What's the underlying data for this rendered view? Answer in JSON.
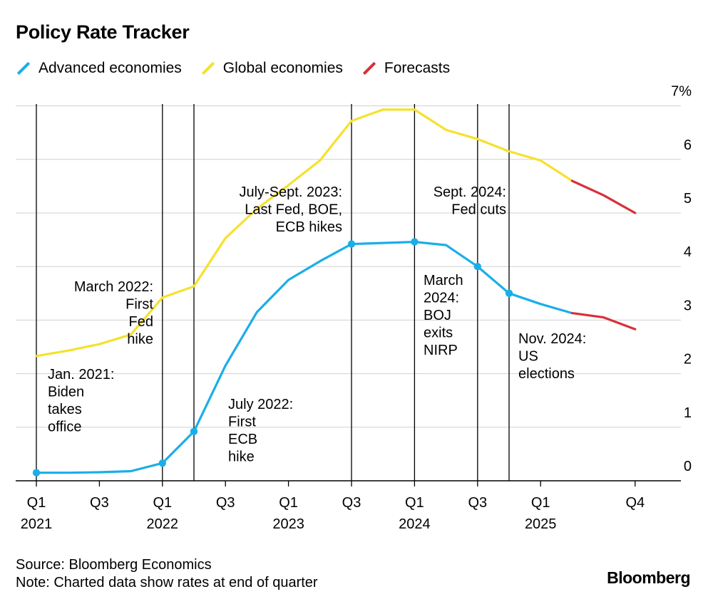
{
  "chart_data": {
    "type": "line",
    "title": "Policy Rate Tracker",
    "legend": [
      {
        "name": "Advanced economies",
        "color": "#1aaee8"
      },
      {
        "name": "Global economies",
        "color": "#f5e12e"
      },
      {
        "name": "Forecasts",
        "color": "#d92f3a"
      }
    ],
    "x_periods": [
      "2021 Q1",
      "2021 Q2",
      "2021 Q3",
      "2021 Q4",
      "2022 Q1",
      "2022 Q2",
      "2022 Q3",
      "2022 Q4",
      "2023 Q1",
      "2023 Q2",
      "2023 Q3",
      "2023 Q4",
      "2024 Q1",
      "2024 Q2",
      "2024 Q3",
      "2024 Q4",
      "2025 Q1",
      "2025 Q2",
      "2025 Q3",
      "2025 Q4"
    ],
    "x_tick_labels": [
      {
        "index": 0,
        "quarter": "Q1",
        "year": "2021"
      },
      {
        "index": 2,
        "quarter": "Q3",
        "year": ""
      },
      {
        "index": 4,
        "quarter": "Q1",
        "year": "2022"
      },
      {
        "index": 6,
        "quarter": "Q3",
        "year": ""
      },
      {
        "index": 8,
        "quarter": "Q1",
        "year": "2023"
      },
      {
        "index": 10,
        "quarter": "Q3",
        "year": ""
      },
      {
        "index": 12,
        "quarter": "Q1",
        "year": "2024"
      },
      {
        "index": 14,
        "quarter": "Q3",
        "year": ""
      },
      {
        "index": 16,
        "quarter": "Q1",
        "year": "2025"
      },
      {
        "index": 19,
        "quarter": "Q4",
        "year": ""
      }
    ],
    "y_ticks": [
      "0",
      "1",
      "2",
      "3",
      "4",
      "5",
      "6",
      "7%"
    ],
    "ylim": [
      0,
      7
    ],
    "series": [
      {
        "name": "Advanced economies",
        "color": "#1aaee8",
        "forecast_color": "#d92f3a",
        "forecast_start_index": 17,
        "values": [
          0.15,
          0.15,
          0.16,
          0.18,
          0.33,
          0.92,
          2.15,
          3.15,
          3.75,
          4.1,
          4.42,
          4.44,
          4.46,
          4.4,
          4.0,
          3.5,
          3.3,
          3.13,
          3.05,
          2.83
        ],
        "marker_indices": [
          0,
          4,
          5,
          10,
          12,
          14,
          15
        ]
      },
      {
        "name": "Global economies",
        "color": "#f5e12e",
        "forecast_color": "#d92f3a",
        "forecast_start_index": 17,
        "values": [
          2.33,
          2.43,
          2.55,
          2.73,
          3.42,
          3.63,
          4.53,
          5.08,
          5.52,
          5.98,
          6.72,
          6.93,
          6.93,
          6.55,
          6.38,
          6.15,
          5.98,
          5.6,
          5.33,
          5.0
        ]
      }
    ],
    "events": [
      {
        "index": 0,
        "lines": [
          "Jan. 2021:",
          "Biden",
          "takes",
          "office"
        ]
      },
      {
        "index": 4,
        "lines": [
          "March 2022:",
          "First",
          "Fed",
          "hike"
        ]
      },
      {
        "index": 5,
        "lines": [
          "July 2022:",
          "First",
          "ECB",
          "hike"
        ]
      },
      {
        "index": 10,
        "lines": [
          "July-Sept. 2023:",
          "Last Fed, BOE,",
          "ECB hikes"
        ]
      },
      {
        "index": 12,
        "lines": [
          "March",
          "2024:",
          "BOJ",
          "exits",
          "NIRP"
        ]
      },
      {
        "index": 14,
        "lines": [
          "Sept. 2024:",
          "Fed cuts"
        ]
      },
      {
        "index": 15,
        "lines": [
          "Nov. 2024:",
          "US",
          "elections"
        ]
      }
    ]
  },
  "footer": {
    "source": "Source: Bloomberg Economics",
    "note": "Note: Charted data show rates at end of quarter"
  },
  "brand": "Bloomberg"
}
